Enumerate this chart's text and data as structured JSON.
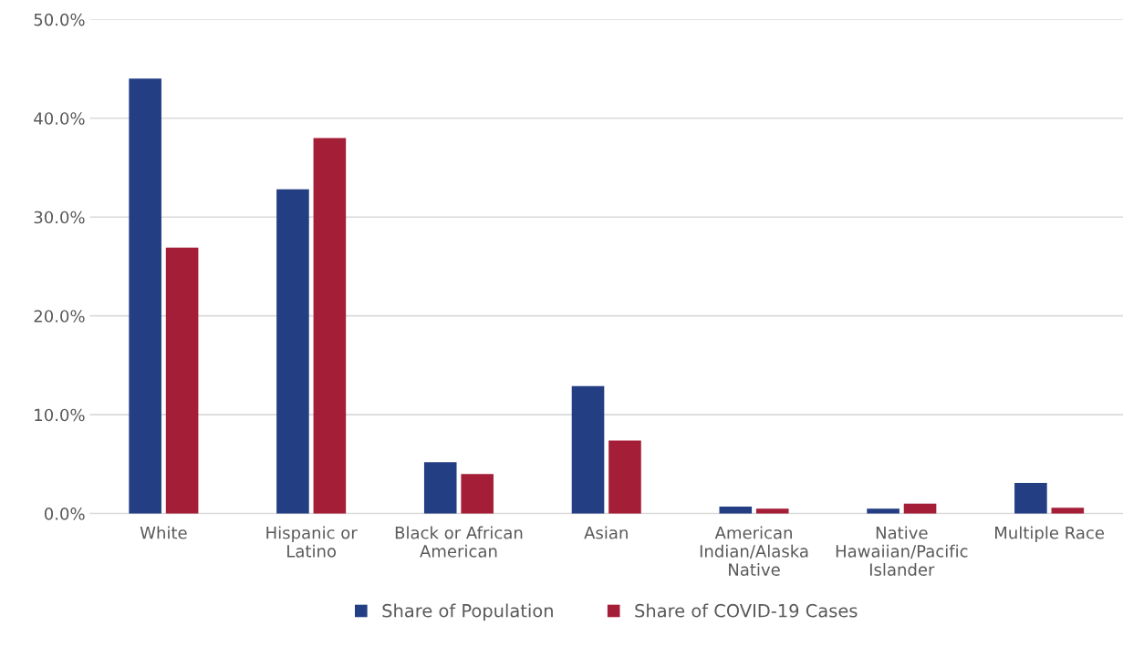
{
  "chart_data": {
    "type": "bar",
    "categories": [
      "White",
      "Hispanic or\nLatino",
      "Black or African\nAmerican",
      "Asian",
      "American\nIndian/Alaska\nNative",
      "Native\nHawaiian/Pacific\nIslander",
      "Multiple Race"
    ],
    "series": [
      {
        "name": "Share of Population",
        "color": "#233e83",
        "values": [
          44.0,
          32.8,
          5.2,
          12.9,
          0.7,
          0.5,
          3.1
        ]
      },
      {
        "name": "Share of COVID-19 Cases",
        "color": "#a51e37",
        "values": [
          26.9,
          38.0,
          4.0,
          7.4,
          0.5,
          1.0,
          0.6
        ]
      }
    ],
    "ylim": [
      0,
      50
    ],
    "yticks": [
      {
        "value": 0,
        "label": "0.0%"
      },
      {
        "value": 10,
        "label": "10.0%"
      },
      {
        "value": 20,
        "label": "20.0%"
      },
      {
        "value": 30,
        "label": "30.0%"
      },
      {
        "value": 40,
        "label": "40.0%"
      },
      {
        "value": 50,
        "label": "50.0%"
      }
    ],
    "grid": "y",
    "legend": "bottom"
  }
}
